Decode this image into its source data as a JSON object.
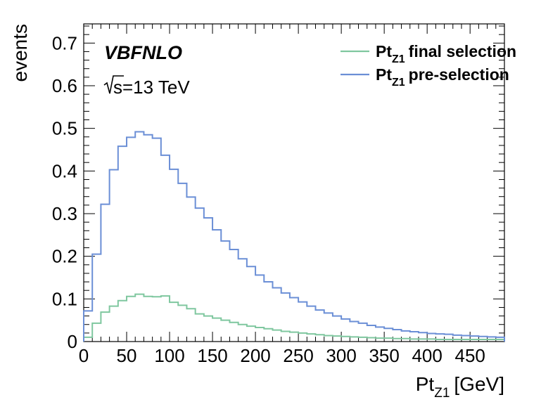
{
  "chart_data": {
    "type": "line",
    "style": "step-histogram",
    "xlabel": "Pt",
    "xlabel_sub": "Z1",
    "xlabel_unit": "[GeV]",
    "ylabel": "events",
    "xlim": [
      0,
      490
    ],
    "ylim": [
      0,
      0.745
    ],
    "bin_width": 10,
    "x_ticks": [
      0,
      50,
      100,
      150,
      200,
      250,
      300,
      350,
      400,
      450
    ],
    "x_tick_labels": [
      "0",
      "50",
      "100",
      "150",
      "200",
      "250",
      "300",
      "350",
      "400",
      "450"
    ],
    "y_ticks": [
      0,
      0.1,
      0.2,
      0.3,
      0.4,
      0.5,
      0.6,
      0.7
    ],
    "y_tick_labels": [
      "0",
      "0.1",
      "0.2",
      "0.3",
      "0.4",
      "0.5",
      "0.6",
      "0.7"
    ],
    "grid": false,
    "legend_position": "top-right",
    "annotations": {
      "title": "VBFNLO",
      "energy": "=13 TeV",
      "energy_prefix": "s"
    },
    "series": [
      {
        "name": "Pt",
        "name_sub": "Z1",
        "name_suffix": "final selection",
        "color": "#7fc79f",
        "values": [
          0.01,
          0.043,
          0.069,
          0.083,
          0.096,
          0.106,
          0.111,
          0.106,
          0.105,
          0.107,
          0.092,
          0.085,
          0.077,
          0.065,
          0.06,
          0.055,
          0.05,
          0.045,
          0.04,
          0.036,
          0.033,
          0.03,
          0.027,
          0.024,
          0.022,
          0.02,
          0.018,
          0.016,
          0.014,
          0.013,
          0.012,
          0.011,
          0.01,
          0.009,
          0.008,
          0.008,
          0.007,
          0.007,
          0.006,
          0.006,
          0.006,
          0.005,
          0.005,
          0.005,
          0.005,
          0.005,
          0.005,
          0.005,
          0.005
        ]
      },
      {
        "name": "Pt",
        "name_sub": "Z1",
        "name_suffix": "pre-selection",
        "color": "#6b8fd6",
        "values": [
          0.072,
          0.205,
          0.322,
          0.403,
          0.458,
          0.479,
          0.492,
          0.485,
          0.477,
          0.437,
          0.404,
          0.371,
          0.339,
          0.313,
          0.29,
          0.262,
          0.236,
          0.216,
          0.194,
          0.176,
          0.156,
          0.14,
          0.126,
          0.114,
          0.103,
          0.093,
          0.083,
          0.074,
          0.067,
          0.06,
          0.053,
          0.047,
          0.043,
          0.038,
          0.034,
          0.031,
          0.028,
          0.025,
          0.023,
          0.021,
          0.019,
          0.018,
          0.017,
          0.015,
          0.014,
          0.013,
          0.012,
          0.011,
          0.01
        ]
      }
    ]
  }
}
